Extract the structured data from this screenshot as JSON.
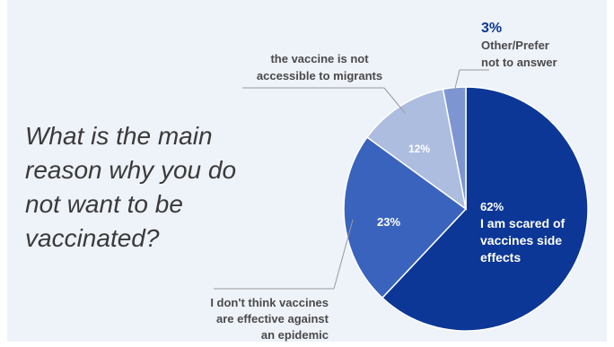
{
  "question": "What is the main reason why you do not want to be vaccinated?",
  "chart_data": {
    "type": "pie",
    "title": "",
    "slices": [
      {
        "label": [
          "I am scared of",
          "vaccines side",
          "effects"
        ],
        "value": 62,
        "pct_text": "62%",
        "color": "#0c3796"
      },
      {
        "label": [
          "I don't think vaccines",
          "are effective against",
          "an epidemic"
        ],
        "value": 23,
        "pct_text": "23%",
        "color": "#3a63bd"
      },
      {
        "label": [
          "the vaccine is not",
          "accessible to migrants"
        ],
        "value": 12,
        "pct_text": "12%",
        "color": "#adbde0"
      },
      {
        "label": [
          "Other/Prefer",
          "not to answer"
        ],
        "value": 3,
        "pct_text": "3%",
        "color": "#7d96d1"
      }
    ],
    "start_angle_deg": 0,
    "direction": "clockwise",
    "colors": {
      "leader_line": "#9a9a9a",
      "label_text": "#4a4a4a",
      "accent_pct": "#0c3796"
    }
  }
}
